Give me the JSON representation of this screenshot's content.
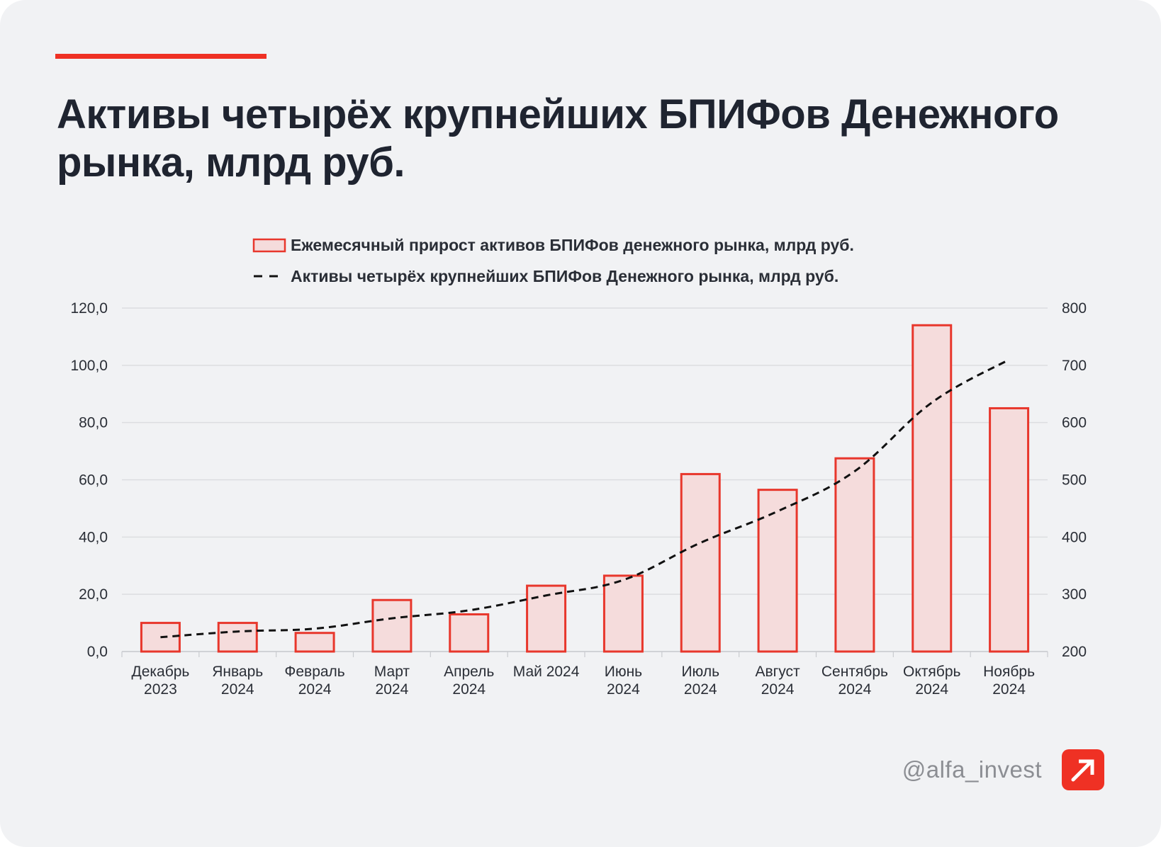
{
  "header": {
    "title": "Активы четырёх крупнейших БПИФов Денежного рынка, млрд руб."
  },
  "footer": {
    "handle": "@alfa_invest"
  },
  "colors": {
    "accent": "#ef3124",
    "bar_fill": "#f5dcdc",
    "bar_stroke": "#e8372c",
    "line": "#111111",
    "grid": "#dcdde0",
    "text": "#1f2430"
  },
  "chart_data": {
    "type": "bar",
    "title": "Активы четырёх крупнейших БПИФов Денежного рынка, млрд руб.",
    "categories": [
      [
        "Декабрь",
        "2023"
      ],
      [
        "Январь",
        "2024"
      ],
      [
        "Февраль",
        "2024"
      ],
      [
        "Март",
        "2024"
      ],
      [
        "Апрель",
        "2024"
      ],
      [
        "Май 2024",
        ""
      ],
      [
        "Июнь",
        "2024"
      ],
      [
        "Июль",
        "2024"
      ],
      [
        "Август",
        "2024"
      ],
      [
        "Сентябрь",
        "2024"
      ],
      [
        "Октябрь",
        "2024"
      ],
      [
        "Ноябрь",
        "2024"
      ]
    ],
    "series": [
      {
        "name": "Ежемесячный прирост активов БПИФов денежного рынка, млрд руб.",
        "type": "bar",
        "axis": "left",
        "values": [
          10,
          10,
          6.5,
          18,
          13,
          23,
          26.5,
          62,
          56.5,
          67.5,
          114,
          85
        ]
      },
      {
        "name": "Активы четырёх крупнейших БПИФов Денежного рынка, млрд руб.",
        "type": "line-dashed",
        "axis": "right",
        "values": [
          225,
          235,
          240,
          258,
          272,
          298,
          325,
          390,
          445,
          515,
          635,
          710
        ]
      }
    ],
    "y_left": {
      "min": 0,
      "max": 120,
      "step": 20,
      "tick_labels": [
        "0,0",
        "20,0",
        "40,0",
        "60,0",
        "80,0",
        "100,0",
        "120,0"
      ]
    },
    "y_right": {
      "min": 200,
      "max": 800,
      "step": 100,
      "tick_labels": [
        "200",
        "300",
        "400",
        "500",
        "600",
        "700",
        "800"
      ]
    },
    "grid": true,
    "legend_position": "top"
  }
}
